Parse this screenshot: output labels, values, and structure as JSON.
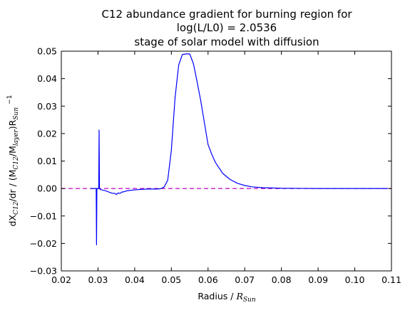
{
  "chart_data": {
    "type": "line",
    "title_lines": [
      "C12 abundance gradient for burning region for",
      "log(L/L0) = 2.0536",
      "stage of solar model with diffusion"
    ],
    "xlabel": {
      "text": "Radius / ",
      "math": "R",
      "math_sub": "Sun"
    },
    "ylabel": {
      "prefix": "dX",
      "sub1": "C12",
      "mid": "/dr / (M",
      "sub2": "C12",
      "mid2": "/M",
      "sub3": "layer",
      "mid3": ")R",
      "sub4": "Sun",
      "sup": "−1"
    },
    "xlim": [
      0.02,
      0.11
    ],
    "ylim": [
      -0.03,
      0.05
    ],
    "xticks": [
      0.02,
      0.03,
      0.04,
      0.05,
      0.06,
      0.07,
      0.08,
      0.09,
      0.1,
      0.11
    ],
    "xtick_labels": [
      "0.02",
      "0.03",
      "0.04",
      "0.05",
      "0.06",
      "0.07",
      "0.08",
      "0.09",
      "0.10",
      "0.11"
    ],
    "yticks": [
      -0.03,
      -0.02,
      -0.01,
      0.0,
      0.01,
      0.02,
      0.03,
      0.04,
      0.05
    ],
    "ytick_labels": [
      "−0.03",
      "−0.02",
      "−0.01",
      "0.00",
      "0.01",
      "0.02",
      "0.03",
      "0.04",
      "0.05"
    ],
    "grid": false,
    "series": [
      {
        "color": "#0000ff",
        "style": "solid",
        "x": [
          0.028,
          0.0295,
          0.0296,
          0.0297,
          0.0298,
          0.0302,
          0.0303,
          0.0304,
          0.0305,
          0.0306,
          0.031,
          0.032,
          0.033,
          0.034,
          0.0345,
          0.035,
          0.0355,
          0.036,
          0.0365,
          0.037,
          0.038,
          0.04,
          0.042,
          0.044,
          0.046,
          0.047,
          0.048,
          0.049,
          0.05,
          0.051,
          0.052,
          0.053,
          0.054,
          0.055,
          0.056,
          0.057,
          0.058,
          0.059,
          0.06,
          0.061,
          0.062,
          0.064,
          0.066,
          0.068,
          0.07,
          0.072,
          0.075,
          0.08,
          0.085,
          0.09,
          0.1,
          0.109
        ],
        "y": [
          0.0,
          0.0,
          -0.0205,
          0.0,
          0.0,
          0.0,
          0.0213,
          0.0,
          -0.0002,
          -0.0003,
          -0.0005,
          -0.0008,
          -0.0013,
          -0.0018,
          -0.0017,
          -0.0022,
          -0.0016,
          -0.0018,
          -0.0013,
          -0.0012,
          -0.0008,
          -0.0005,
          -0.0003,
          -0.0002,
          -0.0002,
          -0.0001,
          0.0005,
          0.003,
          0.014,
          0.033,
          0.045,
          0.0488,
          0.049,
          0.049,
          0.0455,
          0.039,
          0.032,
          0.024,
          0.016,
          0.0125,
          0.0095,
          0.0055,
          0.0033,
          0.0019,
          0.0011,
          0.0006,
          0.0003,
          0.0001,
          5e-05,
          0.0,
          0.0,
          0.0
        ]
      },
      {
        "color": "#bf00bf",
        "style": "dashed",
        "x": [
          0.02,
          0.11
        ],
        "y": [
          0.0,
          0.0
        ]
      }
    ]
  }
}
